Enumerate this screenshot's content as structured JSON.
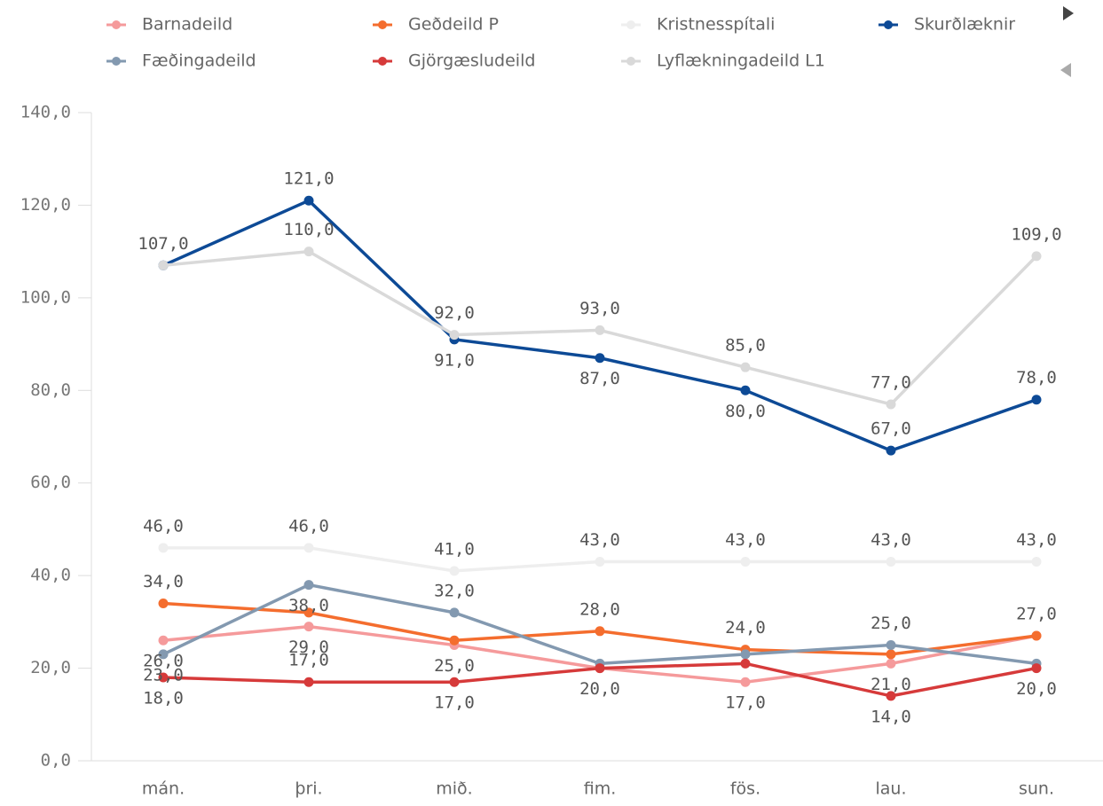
{
  "chart_data": {
    "type": "line",
    "categories": [
      "mán.",
      "þri.",
      "mið.",
      "fim.",
      "fös.",
      "lau.",
      "sun."
    ],
    "ylim": [
      0,
      140
    ],
    "yticks": [
      {
        "value": 0,
        "label": "0,0"
      },
      {
        "value": 20,
        "label": "20,0"
      },
      {
        "value": 40,
        "label": "40,0"
      },
      {
        "value": 60,
        "label": "60,0"
      },
      {
        "value": 80,
        "label": "80,0"
      },
      {
        "value": 100,
        "label": "100,0"
      },
      {
        "value": 120,
        "label": "120,0"
      },
      {
        "value": 140,
        "label": "140,0"
      }
    ],
    "grid": false,
    "legend": "top",
    "series": [
      {
        "name": "Barnadeild",
        "color": "#f59a9b",
        "values": [
          26,
          29,
          25,
          20,
          17,
          21,
          27
        ],
        "value_labels": [
          "26,0",
          "29,0",
          "25,0",
          null,
          "17,0",
          "21,0",
          null
        ]
      },
      {
        "name": "Geðdeild P",
        "color": "#f46d2e",
        "values": [
          34,
          32,
          26,
          28,
          24,
          23,
          27
        ],
        "value_labels": [
          "34,0",
          null,
          null,
          "28,0",
          "24,0",
          null,
          "27,0"
        ]
      },
      {
        "name": "Kristnesspítali",
        "color": "#eeeeee",
        "values": [
          46,
          46,
          41,
          43,
          43,
          43,
          43
        ],
        "value_labels": [
          "46,0",
          "46,0",
          "41,0",
          "43,0",
          "43,0",
          "43,0",
          "43,0"
        ]
      },
      {
        "name": "Skurðlæknir",
        "color": "#0d4a96",
        "values": [
          107,
          121,
          91,
          87,
          80,
          67,
          78
        ],
        "value_labels": [
          "107,0",
          "121,0",
          "91,0",
          "87,0",
          "80,0",
          "67,0",
          "78,0"
        ]
      },
      {
        "name": "Fæðingadeild",
        "color": "#8399b0",
        "values": [
          23,
          38,
          32,
          21,
          23,
          25,
          21
        ],
        "value_labels": [
          "23,0",
          "38,0",
          "32,0",
          null,
          null,
          "25,0",
          null
        ]
      },
      {
        "name": "Gjörgæsludeild",
        "color": "#d63a3a",
        "values": [
          18,
          17,
          17,
          20,
          21,
          14,
          20
        ],
        "value_labels": [
          "18,0",
          "17,0",
          "17,0",
          "20,0",
          null,
          "14,0",
          "20,0"
        ]
      },
      {
        "name": "Lyflækningadeild L1",
        "color": "#d9d9d9",
        "values": [
          107,
          110,
          92,
          93,
          85,
          77,
          109
        ],
        "value_labels": [
          null,
          "110,0",
          "92,0",
          "93,0",
          "85,0",
          "77,0",
          "109,0"
        ]
      }
    ]
  }
}
